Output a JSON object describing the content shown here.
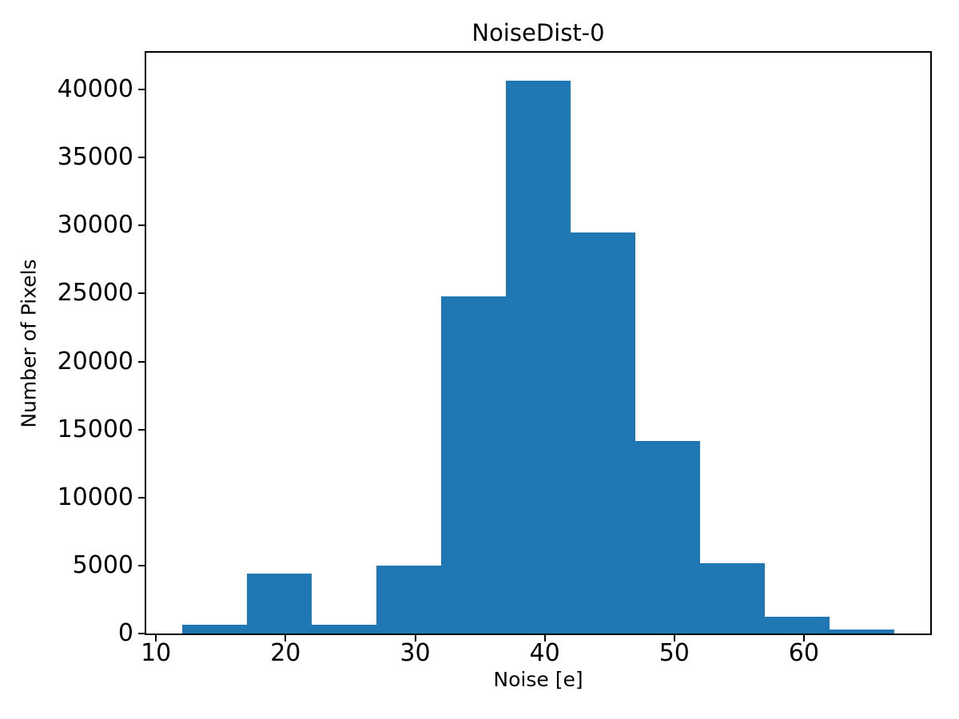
{
  "figure": {
    "background": "#ffffff",
    "text_color": "#000000"
  },
  "chart_data": {
    "type": "bar",
    "subtype": "histogram",
    "title": "NoiseDist-0",
    "xlabel": "Noise [e]",
    "ylabel": "Number of Pixels",
    "bin_edges": [
      12,
      17,
      22,
      27,
      32,
      37,
      42,
      47,
      52,
      57,
      62,
      67
    ],
    "counts": [
      650,
      4400,
      650,
      5000,
      24800,
      40650,
      29500,
      14150,
      5150,
      1250,
      320
    ],
    "bar_color": "#1f77b4",
    "xlim": [
      9.25,
      69.75
    ],
    "ylim": [
      0,
      42700
    ],
    "x_ticks": [
      10,
      20,
      30,
      40,
      50,
      60
    ],
    "y_ticks": [
      0,
      5000,
      10000,
      15000,
      20000,
      25000,
      30000,
      35000,
      40000
    ],
    "grid": false,
    "legend_position": "none"
  }
}
